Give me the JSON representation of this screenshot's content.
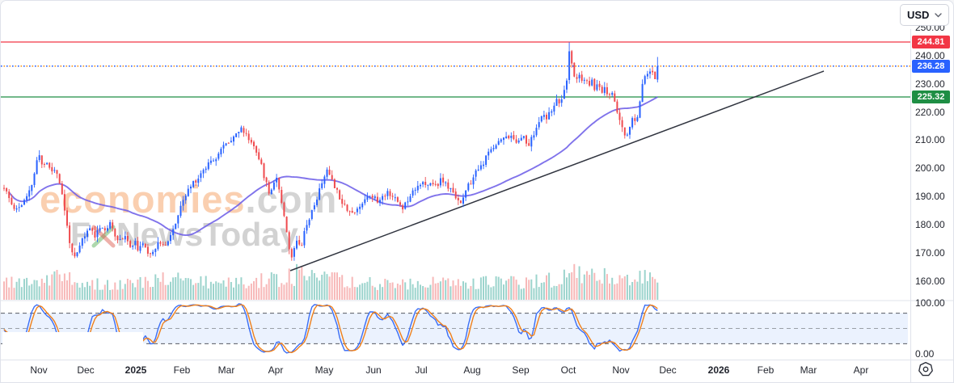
{
  "toolbar": {
    "currency": "USD"
  },
  "price_labels": {
    "resistance": "244.81",
    "last": "236.28",
    "support": "225.32"
  },
  "levels": {
    "resistance": 244.81,
    "last": 236.28,
    "support": 225.32
  },
  "watermark": {
    "brand": "economies",
    "domain_suffix": ".com",
    "line2_prefix": "F",
    "line2_suffix": "NewsToday"
  },
  "colors": {
    "up_candle": "#2962ff",
    "down_candle": "#ef4a4e",
    "resistance_line": "#f23645",
    "support_line": "#1e8e44",
    "last_dotted_blue": "#2962ff",
    "last_dotted_orange": "#f7941d",
    "ma_line": "#6a5ae8",
    "trendline": "#30343f",
    "separator": "#e0e3eb",
    "badge_blue": "#2962ff"
  },
  "chart_data": {
    "type": "candlestick",
    "instrument_currency": "USD",
    "timeframe": "daily",
    "seed": 11,
    "price_scale": {
      "y_top": 28,
      "y_bottom": 370,
      "p_top": 251.4,
      "p_bottom": 153.4
    },
    "osc_scale": {
      "y_top": 374,
      "y_bottom": 437
    },
    "price_axis": {
      "ticks": [
        250,
        240,
        230,
        220,
        210,
        200,
        190,
        180,
        170,
        160
      ],
      "ylim": [
        160,
        250
      ]
    },
    "oscillator_axis": {
      "ticks": [
        100,
        0
      ],
      "levels_dashed": [
        80,
        50,
        20
      ],
      "ylim": [
        0,
        100
      ]
    },
    "months": [
      {
        "label": "Nov",
        "x": 47
      },
      {
        "label": "Dec",
        "x": 105
      },
      {
        "label": "2025",
        "x": 167
      },
      {
        "label": "Feb",
        "x": 224
      },
      {
        "label": "Mar",
        "x": 279
      },
      {
        "label": "Apr",
        "x": 340
      },
      {
        "label": "May",
        "x": 400
      },
      {
        "label": "Jun",
        "x": 461
      },
      {
        "label": "Jul",
        "x": 520
      },
      {
        "label": "Aug",
        "x": 583
      },
      {
        "label": "Sep",
        "x": 643
      },
      {
        "label": "Oct",
        "x": 702
      },
      {
        "label": "Nov",
        "x": 767
      },
      {
        "label": "Dec",
        "x": 825
      },
      {
        "label": "2026",
        "x": 888
      },
      {
        "label": "Feb",
        "x": 946
      },
      {
        "label": "Mar",
        "x": 999
      },
      {
        "label": "Apr",
        "x": 1064
      }
    ],
    "levels": [
      {
        "name": "resistance",
        "value": 244.81,
        "style": "solid",
        "color": "#f23645"
      },
      {
        "name": "last_price",
        "value": 236.28,
        "style": "dotted",
        "color": "#2962ff"
      },
      {
        "name": "support",
        "value": 225.32,
        "style": "solid",
        "color": "#1e8e44"
      }
    ],
    "trendline": {
      "x1": 358,
      "y1": 334,
      "x2": 1018,
      "y2": 87
    },
    "candles": {
      "count": 260,
      "start_x": 3,
      "spacing": 3.121,
      "width": 2,
      "spike_index": 224,
      "spike_high": 244.7,
      "last_close": 236.28,
      "last_high": 239.5
    },
    "moving_average": {
      "period": 50,
      "color": "#6a5ae8"
    },
    "stochastic": {
      "k_period": 9,
      "smooth": 3,
      "d_period": 3,
      "k_color": "#3b6ef5",
      "d_color": "#f0801a",
      "band_fill": "rgba(63,129,244,0.10)"
    },
    "volume": {
      "up_color": "rgba(58,170,155,0.50)",
      "down_color": "rgba(240,125,125,0.55)",
      "profile": [
        [
          0,
          0.55
        ],
        [
          40,
          0.5
        ],
        [
          70,
          0.8
        ],
        [
          100,
          0.55
        ],
        [
          140,
          0.5
        ],
        [
          180,
          0.55
        ],
        [
          205,
          0.7
        ],
        [
          228,
          1.0
        ],
        [
          240,
          0.6
        ],
        [
          270,
          0.5
        ],
        [
          300,
          0.55
        ],
        [
          330,
          0.7
        ],
        [
          358,
          0.95
        ],
        [
          380,
          0.8
        ],
        [
          400,
          0.75
        ],
        [
          430,
          0.6
        ],
        [
          470,
          0.5
        ],
        [
          500,
          0.5
        ],
        [
          530,
          0.55
        ],
        [
          560,
          0.5
        ],
        [
          590,
          0.55
        ],
        [
          620,
          0.6
        ],
        [
          650,
          0.6
        ],
        [
          680,
          0.7
        ],
        [
          705,
          1.0
        ],
        [
          725,
          0.85
        ],
        [
          745,
          0.8
        ],
        [
          765,
          0.75
        ],
        [
          785,
          0.7
        ],
        [
          800,
          0.85
        ],
        [
          812,
          0.6
        ]
      ]
    },
    "price_path": [
      [
        3,
        193
      ],
      [
        8,
        190
      ],
      [
        13,
        187
      ],
      [
        18,
        185.5
      ],
      [
        24,
        187
      ],
      [
        30,
        189
      ],
      [
        35,
        192
      ],
      [
        39,
        196
      ],
      [
        43,
        202
      ],
      [
        47,
        205
      ],
      [
        51,
        200
      ],
      [
        55,
        203
      ],
      [
        59,
        200
      ],
      [
        63,
        199
      ],
      [
        67,
        200
      ],
      [
        71,
        196
      ],
      [
        75,
        190
      ],
      [
        79,
        183
      ],
      [
        83,
        176
      ],
      [
        87,
        170
      ],
      [
        91,
        167.5
      ],
      [
        95,
        171
      ],
      [
        100,
        175
      ],
      [
        105,
        177
      ],
      [
        110,
        179
      ],
      [
        116,
        176
      ],
      [
        122,
        180
      ],
      [
        128,
        178
      ],
      [
        134,
        180
      ],
      [
        140,
        177
      ],
      [
        146,
        174
      ],
      [
        152,
        177
      ],
      [
        158,
        172
      ],
      [
        164,
        174
      ],
      [
        170,
        171
      ],
      [
        176,
        173
      ],
      [
        182,
        170
      ],
      [
        188,
        171
      ],
      [
        194,
        174
      ],
      [
        200,
        172
      ],
      [
        206,
        175
      ],
      [
        212,
        178
      ],
      [
        218,
        183
      ],
      [
        224,
        188
      ],
      [
        230,
        192
      ],
      [
        237,
        195
      ],
      [
        244,
        197
      ],
      [
        251,
        200
      ],
      [
        258,
        203
      ],
      [
        265,
        204
      ],
      [
        272,
        207
      ],
      [
        279,
        209
      ],
      [
        285,
        211
      ],
      [
        292,
        213
      ],
      [
        298,
        214
      ],
      [
        304,
        211
      ],
      [
        310,
        209
      ],
      [
        316,
        206
      ],
      [
        321,
        201
      ],
      [
        326,
        196
      ],
      [
        331,
        191
      ],
      [
        336,
        195
      ],
      [
        341,
        197
      ],
      [
        345,
        190
      ],
      [
        350,
        183
      ],
      [
        354,
        175
      ],
      [
        358,
        167
      ],
      [
        362,
        172
      ],
      [
        366,
        176
      ],
      [
        370,
        172
      ],
      [
        374,
        177
      ],
      [
        378,
        181
      ],
      [
        383,
        184
      ],
      [
        388,
        188
      ],
      [
        393,
        192
      ],
      [
        398,
        197
      ],
      [
        403,
        199
      ],
      [
        408,
        197
      ],
      [
        413,
        193
      ],
      [
        418,
        190
      ],
      [
        424,
        187
      ],
      [
        430,
        185
      ],
      [
        436,
        184
      ],
      [
        442,
        186
      ],
      [
        448,
        189
      ],
      [
        454,
        191
      ],
      [
        460,
        190
      ],
      [
        466,
        188
      ],
      [
        472,
        190
      ],
      [
        478,
        192
      ],
      [
        484,
        190
      ],
      [
        490,
        188
      ],
      [
        496,
        186
      ],
      [
        502,
        189
      ],
      [
        508,
        192
      ],
      [
        514,
        194
      ],
      [
        520,
        195
      ],
      [
        526,
        193
      ],
      [
        532,
        195
      ],
      [
        538,
        194
      ],
      [
        544,
        196
      ],
      [
        550,
        194
      ],
      [
        556,
        192
      ],
      [
        562,
        190
      ],
      [
        568,
        188
      ],
      [
        572,
        190
      ],
      [
        576,
        193
      ],
      [
        582,
        196
      ],
      [
        588,
        199
      ],
      [
        594,
        201
      ],
      [
        600,
        204
      ],
      [
        606,
        207
      ],
      [
        612,
        209
      ],
      [
        618,
        210
      ],
      [
        624,
        212
      ],
      [
        630,
        211
      ],
      [
        636,
        209
      ],
      [
        642,
        212
      ],
      [
        648,
        210
      ],
      [
        652,
        208
      ],
      [
        658,
        212
      ],
      [
        664,
        216
      ],
      [
        670,
        219
      ],
      [
        674,
        217
      ],
      [
        680,
        221
      ],
      [
        686,
        224
      ],
      [
        690,
        222
      ],
      [
        695,
        227
      ],
      [
        700,
        231
      ],
      [
        703,
        242
      ],
      [
        706,
        236
      ],
      [
        710,
        231
      ],
      [
        714,
        233
      ],
      [
        718,
        230
      ],
      [
        722,
        232
      ],
      [
        726,
        229
      ],
      [
        730,
        231
      ],
      [
        734,
        228
      ],
      [
        738,
        230
      ],
      [
        742,
        227
      ],
      [
        746,
        229
      ],
      [
        750,
        226
      ],
      [
        754,
        227
      ],
      [
        758,
        224
      ],
      [
        762,
        220
      ],
      [
        766,
        215
      ],
      [
        770,
        212
      ],
      [
        773,
        211
      ],
      [
        776,
        214
      ],
      [
        780,
        217
      ],
      [
        784,
        216
      ],
      [
        788,
        221
      ],
      [
        791,
        228
      ],
      [
        794,
        232
      ],
      [
        797,
        234
      ],
      [
        800,
        232
      ],
      [
        803,
        236
      ],
      [
        806,
        234
      ],
      [
        809,
        232
      ],
      [
        812,
        236.28
      ]
    ]
  }
}
